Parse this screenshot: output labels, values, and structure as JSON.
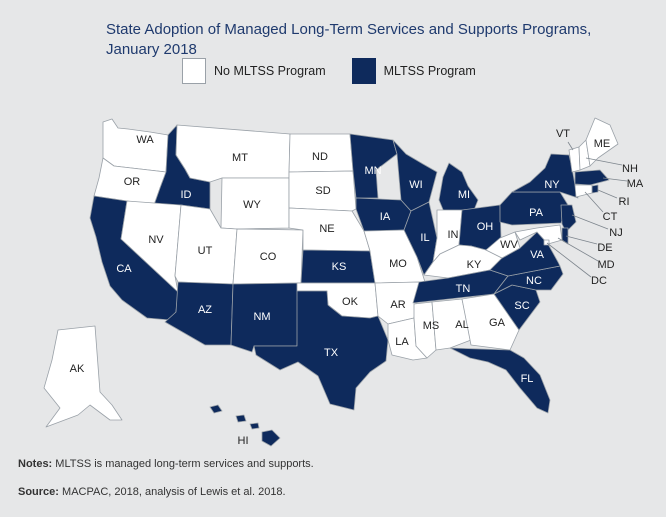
{
  "title": "State Adoption of Managed Long-Term Services and Supports Programs, January 2018",
  "legend": {
    "no_program": "No MLTSS Program",
    "program": "MLTSS Program"
  },
  "colors": {
    "mltss": "#0e2a5c",
    "no_mltss": "#ffffff",
    "border": "#9aa1a8",
    "background": "#e6e7e8"
  },
  "states": [
    {
      "abbr": "WA",
      "mltss": false
    },
    {
      "abbr": "OR",
      "mltss": false
    },
    {
      "abbr": "CA",
      "mltss": true
    },
    {
      "abbr": "ID",
      "mltss": true
    },
    {
      "abbr": "NV",
      "mltss": false
    },
    {
      "abbr": "MT",
      "mltss": false
    },
    {
      "abbr": "WY",
      "mltss": false
    },
    {
      "abbr": "UT",
      "mltss": false
    },
    {
      "abbr": "AZ",
      "mltss": true
    },
    {
      "abbr": "CO",
      "mltss": false
    },
    {
      "abbr": "NM",
      "mltss": true
    },
    {
      "abbr": "ND",
      "mltss": false
    },
    {
      "abbr": "SD",
      "mltss": false
    },
    {
      "abbr": "NE",
      "mltss": false
    },
    {
      "abbr": "KS",
      "mltss": true
    },
    {
      "abbr": "OK",
      "mltss": false
    },
    {
      "abbr": "TX",
      "mltss": true
    },
    {
      "abbr": "MN",
      "mltss": true
    },
    {
      "abbr": "IA",
      "mltss": true
    },
    {
      "abbr": "MO",
      "mltss": false
    },
    {
      "abbr": "AR",
      "mltss": false
    },
    {
      "abbr": "LA",
      "mltss": false
    },
    {
      "abbr": "WI",
      "mltss": true
    },
    {
      "abbr": "IL",
      "mltss": true
    },
    {
      "abbr": "MI",
      "mltss": true
    },
    {
      "abbr": "IN",
      "mltss": false
    },
    {
      "abbr": "OH",
      "mltss": true
    },
    {
      "abbr": "KY",
      "mltss": false
    },
    {
      "abbr": "TN",
      "mltss": true
    },
    {
      "abbr": "MS",
      "mltss": false
    },
    {
      "abbr": "AL",
      "mltss": false
    },
    {
      "abbr": "GA",
      "mltss": false
    },
    {
      "abbr": "FL",
      "mltss": true
    },
    {
      "abbr": "SC",
      "mltss": true
    },
    {
      "abbr": "NC",
      "mltss": true
    },
    {
      "abbr": "VA",
      "mltss": true
    },
    {
      "abbr": "WV",
      "mltss": false
    },
    {
      "abbr": "PA",
      "mltss": true
    },
    {
      "abbr": "NY",
      "mltss": true
    },
    {
      "abbr": "VT",
      "mltss": false
    },
    {
      "abbr": "NH",
      "mltss": false
    },
    {
      "abbr": "ME",
      "mltss": false
    },
    {
      "abbr": "MA",
      "mltss": true
    },
    {
      "abbr": "RI",
      "mltss": true
    },
    {
      "abbr": "CT",
      "mltss": false
    },
    {
      "abbr": "NJ",
      "mltss": true
    },
    {
      "abbr": "DE",
      "mltss": true
    },
    {
      "abbr": "MD",
      "mltss": false
    },
    {
      "abbr": "DC",
      "mltss": false
    },
    {
      "abbr": "AK",
      "mltss": false
    },
    {
      "abbr": "HI",
      "mltss": true
    }
  ],
  "notes": {
    "label": "Notes:",
    "text": "MLTSS is managed long-term services and supports."
  },
  "source": {
    "label": "Source:",
    "text": "MACPAC, 2018, analysis of Lewis et al. 2018."
  }
}
